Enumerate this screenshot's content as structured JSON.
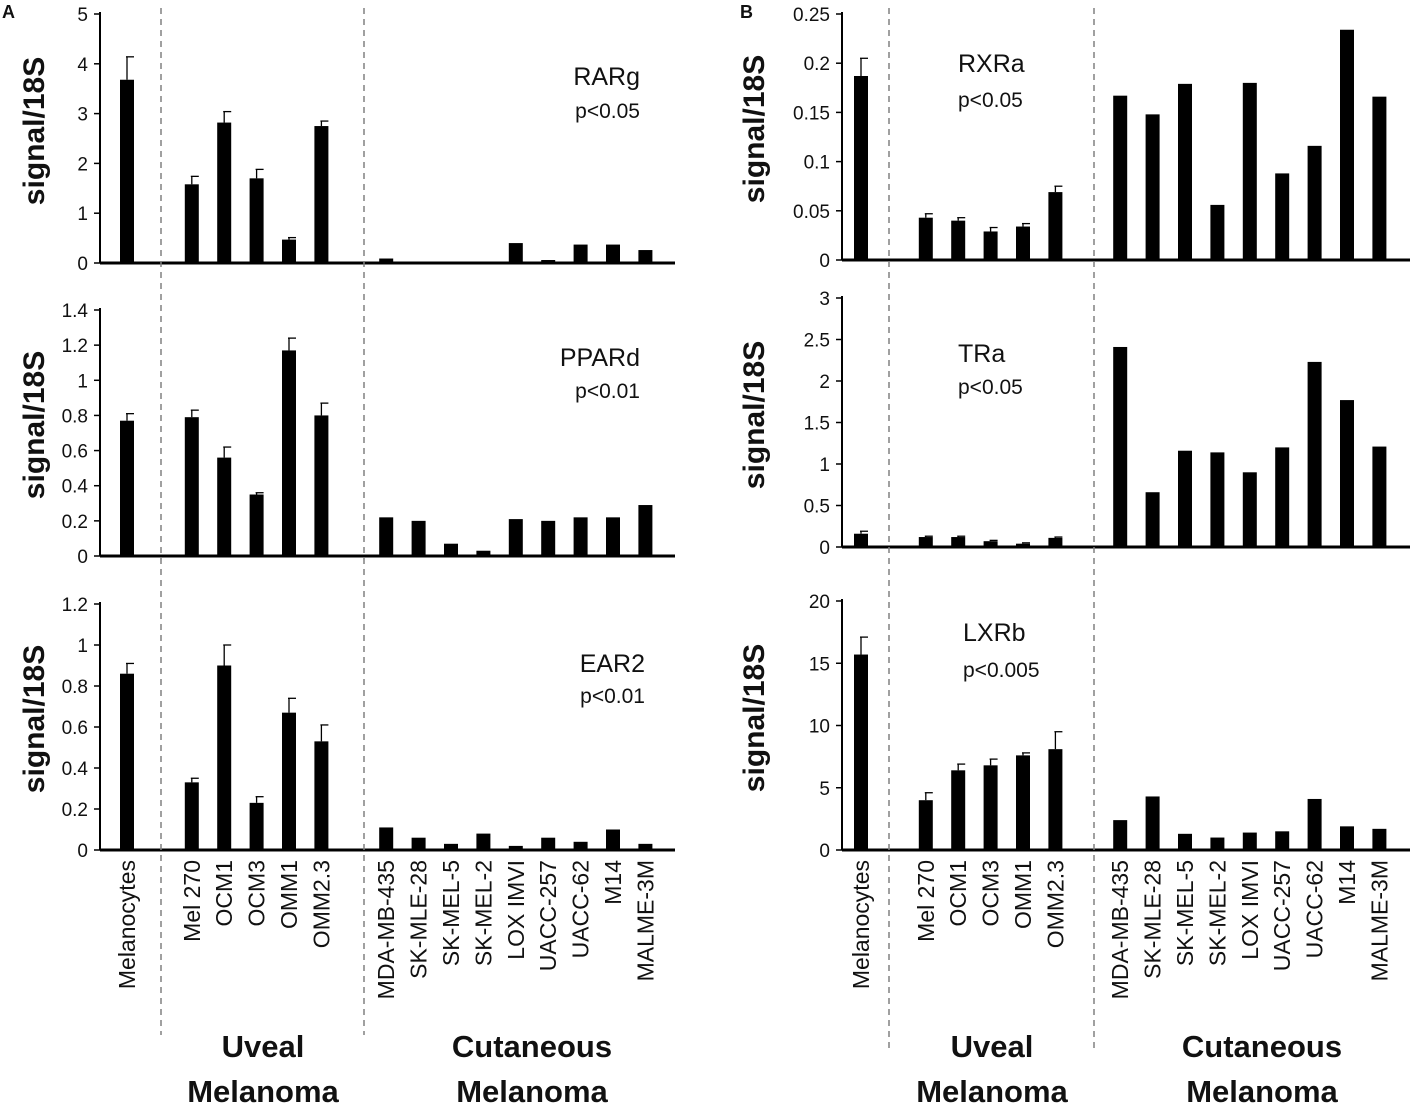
{
  "figure": {
    "panel_labels": [
      "A",
      "B"
    ],
    "group_labels": {
      "uveal": [
        "Uveal",
        "Melanoma"
      ],
      "cutaneous": [
        "Cutaneous",
        "Melanoma"
      ]
    }
  },
  "chart_data": [
    {
      "type": "bar",
      "panel": "A",
      "title": "RARg",
      "pvalue": "p<0.05",
      "ylabel": "signal/18S",
      "ylim": [
        0,
        5
      ],
      "yticks": [
        0,
        1,
        2,
        3,
        4,
        5
      ],
      "yticklabels": [
        "0",
        "1",
        "2",
        "3",
        "4",
        "5"
      ],
      "categories": [
        "Melanocytes",
        "Mel 270",
        "OCM1",
        "OCM3",
        "OMM1",
        "OMM2.3",
        "MDA-MB-435",
        "SK-MLE-28",
        "SK-MEL-5",
        "SK-MEL-2",
        "LOX IMVI",
        "UACC-257",
        "UACC-62",
        "M14",
        "MALME-3M"
      ],
      "values": [
        3.68,
        1.58,
        2.82,
        1.7,
        0.47,
        2.75,
        0.09,
        0.03,
        0.0,
        0.0,
        0.4,
        0.06,
        0.37,
        0.37,
        0.26
      ],
      "errors": [
        0.46,
        0.16,
        0.22,
        0.18,
        0.04,
        0.1,
        0,
        0,
        0,
        0,
        0,
        0,
        0,
        0,
        0
      ]
    },
    {
      "type": "bar",
      "panel": "A",
      "title": "PPARd",
      "pvalue": "p<0.01",
      "ylabel": "signal/18S",
      "ylim": [
        0,
        1.4
      ],
      "yticks": [
        0,
        0.2,
        0.4,
        0.6,
        0.8,
        1,
        1.2,
        1.4
      ],
      "yticklabels": [
        "0",
        "0.2",
        "0.4",
        "0.6",
        "0.8",
        "1",
        "1.2",
        "1.4"
      ],
      "categories": [
        "Melanocytes",
        "Mel 270",
        "OCM1",
        "OCM3",
        "OMM1",
        "OMM2.3",
        "MDA-MB-435",
        "SK-MLE-28",
        "SK-MEL-5",
        "SK-MEL-2",
        "LOX IMVI",
        "UACC-257",
        "UACC-62",
        "M14",
        "MALME-3M"
      ],
      "values": [
        0.77,
        0.79,
        0.56,
        0.35,
        1.17,
        0.8,
        0.22,
        0.2,
        0.07,
        0.03,
        0.21,
        0.2,
        0.22,
        0.22,
        0.29
      ],
      "errors": [
        0.04,
        0.04,
        0.06,
        0.01,
        0.07,
        0.07,
        0,
        0,
        0,
        0,
        0,
        0,
        0,
        0,
        0
      ]
    },
    {
      "type": "bar",
      "panel": "A",
      "title": "EAR2",
      "pvalue": "p<0.01",
      "ylabel": "signal/18S",
      "ylim": [
        0,
        1.2
      ],
      "yticks": [
        0,
        0.2,
        0.4,
        0.6,
        0.8,
        1,
        1.2
      ],
      "yticklabels": [
        "0",
        "0.2",
        "0.4",
        "0.6",
        "0.8",
        "1",
        "1.2"
      ],
      "categories": [
        "Melanocytes",
        "Mel 270",
        "OCM1",
        "OCM3",
        "OMM1",
        "OMM2.3",
        "MDA-MB-435",
        "SK-MLE-28",
        "SK-MEL-5",
        "SK-MEL-2",
        "LOX IMVI",
        "UACC-257",
        "UACC-62",
        "M14",
        "MALME-3M"
      ],
      "values": [
        0.86,
        0.33,
        0.9,
        0.23,
        0.67,
        0.53,
        0.11,
        0.06,
        0.03,
        0.08,
        0.02,
        0.06,
        0.04,
        0.1,
        0.03
      ],
      "errors": [
        0.05,
        0.02,
        0.1,
        0.03,
        0.07,
        0.08,
        0,
        0,
        0,
        0,
        0,
        0,
        0,
        0,
        0
      ]
    },
    {
      "type": "bar",
      "panel": "B",
      "title": "RXRa",
      "pvalue": "p<0.05",
      "ylabel": "signal/18S",
      "ylim": [
        0,
        0.25
      ],
      "yticks": [
        0,
        0.05,
        0.1,
        0.15,
        0.2,
        0.25
      ],
      "yticklabels": [
        "0",
        "0.05",
        "0.1",
        "0.15",
        "0.2",
        "0.25"
      ],
      "categories": [
        "Melanocytes",
        "Mel 270",
        "OCM1",
        "OCM3",
        "OMM1",
        "OMM2.3",
        "MDA-MB-435",
        "SK-MLE-28",
        "SK-MEL-5",
        "SK-MEL-2",
        "LOX IMVI",
        "UACC-257",
        "UACC-62",
        "M14",
        "MALME-3M"
      ],
      "values": [
        0.187,
        0.043,
        0.04,
        0.029,
        0.034,
        0.069,
        0.167,
        0.148,
        0.179,
        0.056,
        0.18,
        0.088,
        0.116,
        0.234,
        0.166
      ],
      "errors": [
        0.018,
        0.004,
        0.003,
        0.004,
        0.003,
        0.006,
        0,
        0,
        0,
        0,
        0,
        0,
        0,
        0,
        0
      ]
    },
    {
      "type": "bar",
      "panel": "B",
      "title": "TRa",
      "pvalue": "p<0.05",
      "ylabel": "signal/18S",
      "ylim": [
        0,
        3
      ],
      "yticks": [
        0,
        0.5,
        1,
        1.5,
        2,
        2.5,
        3
      ],
      "yticklabels": [
        "0",
        "0.5",
        "1",
        "1.5",
        "2",
        "2.5",
        "3"
      ],
      "categories": [
        "Melanocytes",
        "Mel 270",
        "OCM1",
        "OCM3",
        "OMM1",
        "OMM2.3",
        "MDA-MB-435",
        "SK-MLE-28",
        "SK-MEL-5",
        "SK-MEL-2",
        "LOX IMVI",
        "UACC-257",
        "UACC-62",
        "M14",
        "MALME-3M"
      ],
      "values": [
        0.16,
        0.12,
        0.12,
        0.07,
        0.04,
        0.11,
        2.41,
        0.66,
        1.16,
        1.14,
        0.9,
        1.2,
        2.23,
        1.77,
        1.21
      ],
      "errors": [
        0.03,
        0.01,
        0.01,
        0.01,
        0.01,
        0.01,
        0,
        0,
        0,
        0,
        0,
        0,
        0,
        0,
        0
      ]
    },
    {
      "type": "bar",
      "panel": "B",
      "title": "LXRb",
      "pvalue": "p<0.005",
      "ylabel": "signal/18S",
      "ylim": [
        0,
        20
      ],
      "yticks": [
        0,
        5,
        10,
        15,
        20
      ],
      "yticklabels": [
        "0",
        "5",
        "10",
        "15",
        "20"
      ],
      "categories": [
        "Melanocytes",
        "Mel 270",
        "OCM1",
        "OCM3",
        "OMM1",
        "OMM2.3",
        "MDA-MB-435",
        "SK-MLE-28",
        "SK-MEL-5",
        "SK-MEL-2",
        "LOX IMVI",
        "UACC-257",
        "UACC-62",
        "M14",
        "MALME-3M"
      ],
      "values": [
        15.7,
        4.0,
        6.4,
        6.8,
        7.6,
        8.1,
        2.4,
        4.3,
        1.3,
        1.0,
        1.4,
        1.5,
        4.1,
        1.9,
        1.7
      ],
      "errors": [
        1.4,
        0.6,
        0.5,
        0.5,
        0.2,
        1.4,
        0,
        0,
        0,
        0,
        0,
        0,
        0,
        0,
        0
      ]
    }
  ]
}
